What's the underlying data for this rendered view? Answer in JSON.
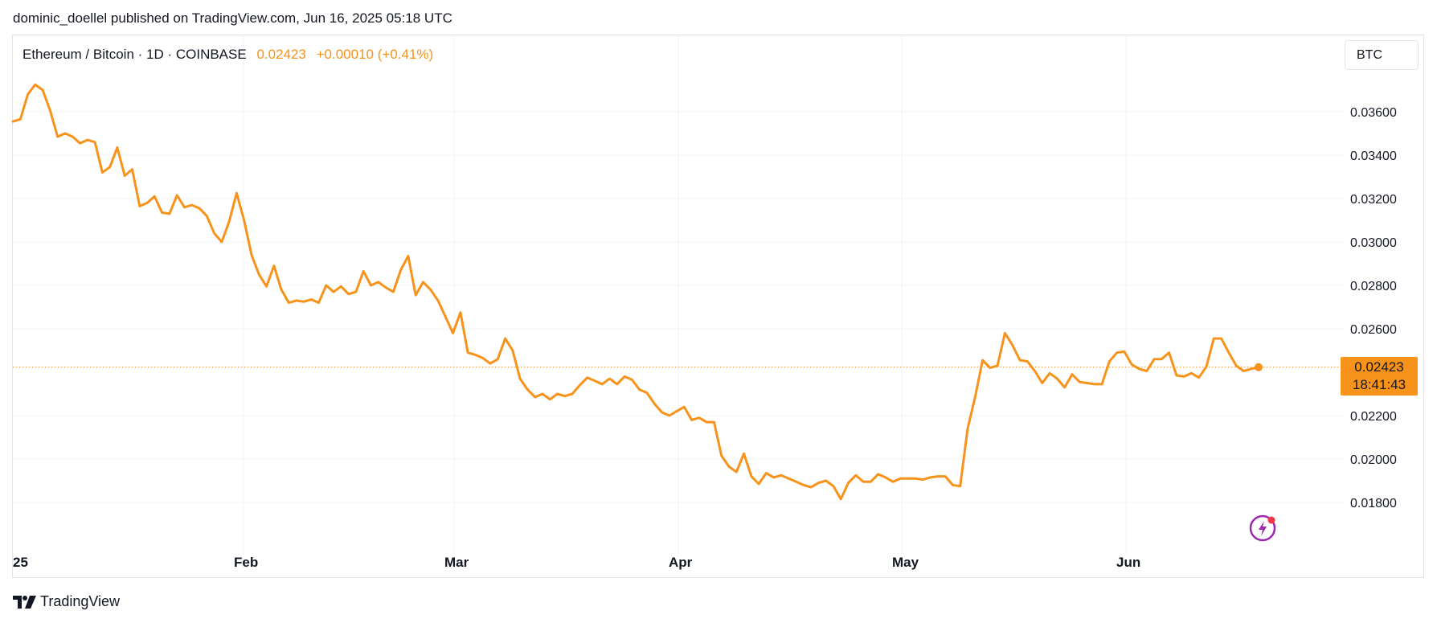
{
  "header": {
    "publisher_line": "dominic_doellel published on TradingView.com, Jun 16, 2025 05:18 UTC"
  },
  "legend": {
    "symbol": "Ethereum / Bitcoin · 1D · COINBASE",
    "last": "0.02423",
    "change": "+0.00010 (+0.41%)"
  },
  "currency_button": "BTC",
  "price_badge": {
    "price": "0.02423",
    "countdown": "18:41:43"
  },
  "branding": {
    "logo_text": "TradingView"
  },
  "colors": {
    "line": "#f7931a",
    "grid": "#f0f3fa",
    "text": "#131722",
    "badge": "#f7931a"
  },
  "icons": {
    "logo": "tradingview-logo-icon",
    "flash": "lightning-icon"
  },
  "chart_data": {
    "type": "line",
    "series": [
      {
        "values": [
          0.03555,
          0.03565,
          0.0368,
          0.03725,
          0.037,
          0.03605,
          0.03485,
          0.035,
          0.03485,
          0.03455,
          0.0347,
          0.0346,
          0.0332,
          0.03345,
          0.03435,
          0.03305,
          0.03335,
          0.03165,
          0.0318,
          0.0321,
          0.03135,
          0.0313,
          0.03215,
          0.0316,
          0.0317,
          0.03155,
          0.0312,
          0.0304,
          0.03,
          0.03095,
          0.03225,
          0.031,
          0.0294,
          0.0285,
          0.02795,
          0.0289,
          0.0278,
          0.0272,
          0.0273,
          0.02725,
          0.02735,
          0.0272,
          0.028,
          0.0277,
          0.02795,
          0.0276,
          0.0277,
          0.02865,
          0.028,
          0.02815,
          0.0279,
          0.0277,
          0.0287,
          0.02935,
          0.02755,
          0.02815,
          0.0278,
          0.0273,
          0.02655,
          0.0258,
          0.02675,
          0.0249,
          0.0248,
          0.02465,
          0.0244,
          0.0246,
          0.02555,
          0.025,
          0.0237,
          0.0232,
          0.02285,
          0.023,
          0.02275,
          0.023,
          0.0229,
          0.023,
          0.0234,
          0.02375,
          0.0236,
          0.02345,
          0.0237,
          0.02345,
          0.0238,
          0.02365,
          0.0232,
          0.02305,
          0.02255,
          0.02215,
          0.022,
          0.0222,
          0.0224,
          0.0218,
          0.0219,
          0.0217,
          0.0217,
          0.02015,
          0.01965,
          0.0194,
          0.02025,
          0.0192,
          0.01885,
          0.01935,
          0.01915,
          0.01925,
          0.0191,
          0.01895,
          0.0188,
          0.0187,
          0.0189,
          0.019,
          0.01875,
          0.01815,
          0.0189,
          0.01925,
          0.01895,
          0.01895,
          0.0193,
          0.01915,
          0.01895,
          0.0191,
          0.0191,
          0.0191,
          0.01905,
          0.01915,
          0.0192,
          0.0192,
          0.0188,
          0.01875,
          0.0214,
          0.02285,
          0.02455,
          0.0242,
          0.0243,
          0.0258,
          0.02525,
          0.02455,
          0.0245,
          0.02405,
          0.0235,
          0.02395,
          0.0237,
          0.0233,
          0.0239,
          0.02355,
          0.0235,
          0.02345,
          0.02345,
          0.0245,
          0.0249,
          0.02495,
          0.02435,
          0.02415,
          0.02405,
          0.0246,
          0.0246,
          0.0249,
          0.02385,
          0.0238,
          0.02395,
          0.02375,
          0.02425,
          0.02555,
          0.02555,
          0.0249,
          0.0243,
          0.02405,
          0.02415,
          0.02423
        ]
      }
    ],
    "x_labels": [
      "25",
      "Feb",
      "Mar",
      "Apr",
      "May",
      "Jun"
    ],
    "ylim": [
      0.017,
      0.038
    ],
    "y_ticks": [
      "0.01800",
      "0.02000",
      "0.02200",
      "0.02600",
      "0.02800",
      "0.03000",
      "0.03200",
      "0.03400",
      "0.03600"
    ],
    "last_price": 0.02423,
    "grid": true
  }
}
